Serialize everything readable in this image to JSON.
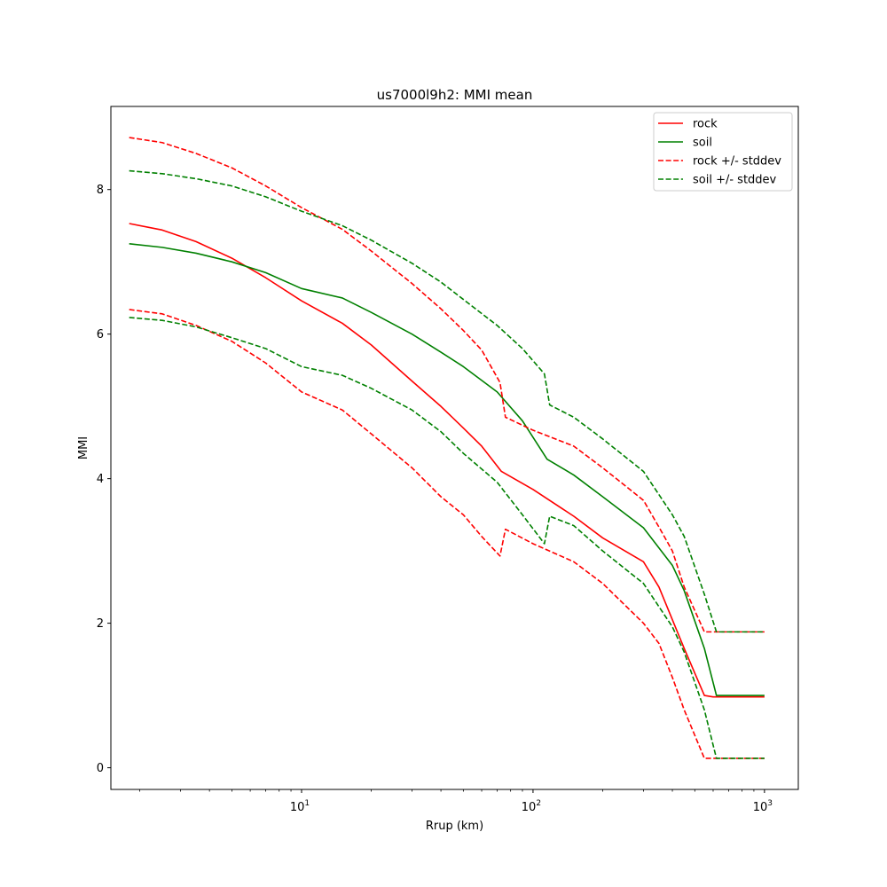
{
  "chart_data": {
    "type": "line",
    "title": "us7000l9h2: MMI mean",
    "xlabel": "Rrup (km)",
    "ylabel": "MMI",
    "xscale": "log",
    "xlim": [
      1.5,
      1400
    ],
    "ylim": [
      -0.3,
      9.15
    ],
    "grid": false,
    "legend_position": "top-right",
    "x_ticks": [
      {
        "value": 10,
        "base": "10",
        "exp": "1"
      },
      {
        "value": 100,
        "base": "10",
        "exp": "2"
      },
      {
        "value": 1000,
        "base": "10",
        "exp": "3"
      }
    ],
    "y_ticks": [
      {
        "value": 0,
        "label": "0"
      },
      {
        "value": 2,
        "label": "2"
      },
      {
        "value": 4,
        "label": "4"
      },
      {
        "value": 6,
        "label": "6"
      },
      {
        "value": 8,
        "label": "8"
      }
    ],
    "legend": [
      {
        "label": "rock",
        "color": "#ff0000",
        "dash": false
      },
      {
        "label": "soil",
        "color": "#008000",
        "dash": false
      },
      {
        "label": "rock +/- stddev",
        "color": "#ff0000",
        "dash": true
      },
      {
        "label": "soil +/- stddev",
        "color": "#008000",
        "dash": true
      }
    ],
    "series": [
      {
        "id": "rock",
        "color": "#ff0000",
        "dash": false,
        "points": [
          [
            1.8,
            7.53
          ],
          [
            2.5,
            7.44
          ],
          [
            3.5,
            7.28
          ],
          [
            5,
            7.05
          ],
          [
            7,
            6.78
          ],
          [
            10,
            6.46
          ],
          [
            15,
            6.15
          ],
          [
            20,
            5.85
          ],
          [
            30,
            5.35
          ],
          [
            40,
            5.0
          ],
          [
            50,
            4.7
          ],
          [
            60,
            4.45
          ],
          [
            73,
            4.1
          ],
          [
            100,
            3.85
          ],
          [
            150,
            3.48
          ],
          [
            200,
            3.18
          ],
          [
            300,
            2.85
          ],
          [
            350,
            2.5
          ],
          [
            450,
            1.65
          ],
          [
            550,
            1.0
          ],
          [
            600,
            0.98
          ],
          [
            1000,
            0.98
          ]
        ]
      },
      {
        "id": "soil",
        "color": "#008000",
        "dash": false,
        "points": [
          [
            1.8,
            7.25
          ],
          [
            2.5,
            7.2
          ],
          [
            3.5,
            7.12
          ],
          [
            5,
            7.0
          ],
          [
            7,
            6.85
          ],
          [
            10,
            6.63
          ],
          [
            15,
            6.5
          ],
          [
            20,
            6.3
          ],
          [
            30,
            6.0
          ],
          [
            40,
            5.75
          ],
          [
            50,
            5.55
          ],
          [
            70,
            5.2
          ],
          [
            90,
            4.8
          ],
          [
            115,
            4.27
          ],
          [
            150,
            4.05
          ],
          [
            200,
            3.75
          ],
          [
            300,
            3.32
          ],
          [
            400,
            2.8
          ],
          [
            450,
            2.45
          ],
          [
            550,
            1.65
          ],
          [
            620,
            1.0
          ],
          [
            1000,
            1.0
          ]
        ]
      },
      {
        "id": "rock_upper",
        "color": "#ff0000",
        "dash": true,
        "points": [
          [
            1.8,
            8.72
          ],
          [
            2.5,
            8.65
          ],
          [
            3.5,
            8.5
          ],
          [
            5,
            8.3
          ],
          [
            7,
            8.05
          ],
          [
            10,
            7.75
          ],
          [
            15,
            7.45
          ],
          [
            20,
            7.15
          ],
          [
            30,
            6.7
          ],
          [
            40,
            6.35
          ],
          [
            50,
            6.05
          ],
          [
            60,
            5.78
          ],
          [
            72,
            5.33
          ],
          [
            76,
            4.85
          ],
          [
            100,
            4.67
          ],
          [
            150,
            4.45
          ],
          [
            200,
            4.15
          ],
          [
            300,
            3.7
          ],
          [
            350,
            3.33
          ],
          [
            400,
            3.0
          ],
          [
            450,
            2.5
          ],
          [
            550,
            1.88
          ],
          [
            1000,
            1.88
          ]
        ]
      },
      {
        "id": "rock_lower",
        "color": "#ff0000",
        "dash": true,
        "points": [
          [
            1.8,
            6.34
          ],
          [
            2.5,
            6.28
          ],
          [
            3.5,
            6.12
          ],
          [
            5,
            5.9
          ],
          [
            7,
            5.6
          ],
          [
            10,
            5.2
          ],
          [
            15,
            4.95
          ],
          [
            20,
            4.62
          ],
          [
            30,
            4.15
          ],
          [
            40,
            3.75
          ],
          [
            50,
            3.5
          ],
          [
            60,
            3.2
          ],
          [
            72,
            2.93
          ],
          [
            76,
            3.3
          ],
          [
            100,
            3.1
          ],
          [
            150,
            2.85
          ],
          [
            200,
            2.55
          ],
          [
            300,
            2.0
          ],
          [
            350,
            1.72
          ],
          [
            400,
            1.25
          ],
          [
            450,
            0.8
          ],
          [
            550,
            0.13
          ],
          [
            1000,
            0.13
          ]
        ]
      },
      {
        "id": "soil_upper",
        "color": "#008000",
        "dash": true,
        "points": [
          [
            1.8,
            8.26
          ],
          [
            2.5,
            8.22
          ],
          [
            3.5,
            8.15
          ],
          [
            5,
            8.05
          ],
          [
            7,
            7.9
          ],
          [
            10,
            7.7
          ],
          [
            15,
            7.5
          ],
          [
            20,
            7.3
          ],
          [
            30,
            6.98
          ],
          [
            40,
            6.72
          ],
          [
            50,
            6.48
          ],
          [
            70,
            6.12
          ],
          [
            90,
            5.8
          ],
          [
            112,
            5.45
          ],
          [
            118,
            5.02
          ],
          [
            150,
            4.85
          ],
          [
            200,
            4.55
          ],
          [
            300,
            4.1
          ],
          [
            400,
            3.5
          ],
          [
            450,
            3.2
          ],
          [
            550,
            2.4
          ],
          [
            620,
            1.88
          ],
          [
            1000,
            1.88
          ]
        ]
      },
      {
        "id": "soil_lower",
        "color": "#008000",
        "dash": true,
        "points": [
          [
            1.8,
            6.23
          ],
          [
            2.5,
            6.19
          ],
          [
            3.5,
            6.1
          ],
          [
            5,
            5.95
          ],
          [
            7,
            5.8
          ],
          [
            10,
            5.55
          ],
          [
            15,
            5.43
          ],
          [
            20,
            5.25
          ],
          [
            30,
            4.95
          ],
          [
            40,
            4.65
          ],
          [
            50,
            4.35
          ],
          [
            70,
            3.95
          ],
          [
            90,
            3.5
          ],
          [
            112,
            3.1
          ],
          [
            118,
            3.48
          ],
          [
            150,
            3.35
          ],
          [
            200,
            3.0
          ],
          [
            300,
            2.55
          ],
          [
            400,
            1.95
          ],
          [
            450,
            1.6
          ],
          [
            550,
            0.8
          ],
          [
            620,
            0.13
          ],
          [
            1000,
            0.13
          ]
        ]
      }
    ]
  }
}
